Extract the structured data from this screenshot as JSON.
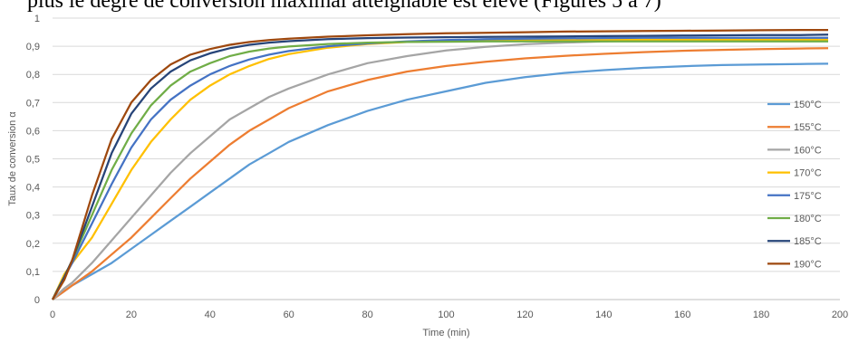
{
  "caption_text": "plus le degré de conversion maximal atteignable est élevé (Figures 5 à 7)",
  "chart_data": {
    "type": "line",
    "xlabel": "Time (min)",
    "ylabel": "Taux de conversion α",
    "xlim": [
      0,
      200
    ],
    "ylim": [
      0,
      1
    ],
    "x_ticks": [
      "0",
      "20",
      "40",
      "60",
      "80",
      "100",
      "120",
      "140",
      "160",
      "180",
      "200"
    ],
    "y_ticks": [
      "0",
      "0,1",
      "0,2",
      "0,3",
      "0,4",
      "0,5",
      "0,6",
      "0,7",
      "0,8",
      "0,9",
      "1"
    ],
    "grid": "horizontal",
    "legend_position": "right",
    "x": [
      0,
      3,
      5,
      10,
      15,
      20,
      25,
      30,
      35,
      40,
      45,
      50,
      55,
      60,
      70,
      80,
      90,
      100,
      110,
      120,
      130,
      140,
      150,
      160,
      170,
      180,
      190,
      197
    ],
    "series": [
      {
        "name": "150°C",
        "color": "#5B9BD5",
        "values": [
          0,
          0.03,
          0.05,
          0.09,
          0.13,
          0.18,
          0.23,
          0.28,
          0.33,
          0.38,
          0.43,
          0.48,
          0.52,
          0.56,
          0.62,
          0.67,
          0.71,
          0.74,
          0.77,
          0.79,
          0.805,
          0.815,
          0.823,
          0.829,
          0.833,
          0.835,
          0.837,
          0.838
        ]
      },
      {
        "name": "155°C",
        "color": "#ED7D31",
        "values": [
          0,
          0.03,
          0.05,
          0.1,
          0.16,
          0.22,
          0.29,
          0.36,
          0.43,
          0.49,
          0.55,
          0.6,
          0.64,
          0.68,
          0.74,
          0.78,
          0.81,
          0.83,
          0.845,
          0.857,
          0.866,
          0.873,
          0.879,
          0.884,
          0.887,
          0.89,
          0.892,
          0.893
        ]
      },
      {
        "name": "160°C",
        "color": "#A5A5A5",
        "values": [
          0,
          0.04,
          0.06,
          0.13,
          0.21,
          0.29,
          0.37,
          0.45,
          0.52,
          0.58,
          0.64,
          0.68,
          0.72,
          0.75,
          0.8,
          0.84,
          0.865,
          0.885,
          0.898,
          0.907,
          0.913,
          0.917,
          0.92,
          0.922,
          0.923,
          0.924,
          0.925,
          0.925
        ]
      },
      {
        "name": "170°C",
        "color": "#FFC000",
        "values": [
          0,
          0.09,
          0.13,
          0.22,
          0.34,
          0.46,
          0.56,
          0.64,
          0.71,
          0.76,
          0.8,
          0.83,
          0.855,
          0.872,
          0.895,
          0.908,
          0.915,
          0.918,
          0.92,
          0.921,
          0.922,
          0.922,
          0.923,
          0.923,
          0.923,
          0.923,
          0.923,
          0.923
        ]
      },
      {
        "name": "175°C",
        "color": "#4472C4",
        "values": [
          0,
          0.08,
          0.13,
          0.27,
          0.41,
          0.54,
          0.64,
          0.71,
          0.76,
          0.8,
          0.83,
          0.853,
          0.87,
          0.883,
          0.9,
          0.91,
          0.917,
          0.922,
          0.925,
          0.927,
          0.928,
          0.929,
          0.93,
          0.93,
          0.93,
          0.93,
          0.93,
          0.93
        ]
      },
      {
        "name": "180°C",
        "color": "#70AD47",
        "values": [
          0,
          0.08,
          0.14,
          0.3,
          0.46,
          0.59,
          0.69,
          0.76,
          0.81,
          0.84,
          0.865,
          0.881,
          0.892,
          0.899,
          0.908,
          0.913,
          0.915,
          0.916,
          0.917,
          0.917,
          0.917,
          0.917,
          0.917,
          0.917,
          0.917,
          0.917,
          0.917,
          0.917
        ]
      },
      {
        "name": "185°C",
        "color": "#264478",
        "values": [
          0,
          0.08,
          0.14,
          0.33,
          0.52,
          0.66,
          0.75,
          0.81,
          0.85,
          0.875,
          0.893,
          0.905,
          0.913,
          0.918,
          0.925,
          0.929,
          0.931,
          0.932,
          0.933,
          0.934,
          0.935,
          0.936,
          0.937,
          0.938,
          0.939,
          0.94,
          0.94,
          0.941
        ]
      },
      {
        "name": "190°C",
        "color": "#9E480E",
        "values": [
          0,
          0.07,
          0.14,
          0.37,
          0.57,
          0.7,
          0.78,
          0.835,
          0.87,
          0.89,
          0.905,
          0.915,
          0.922,
          0.927,
          0.934,
          0.939,
          0.943,
          0.946,
          0.948,
          0.95,
          0.952,
          0.953,
          0.954,
          0.955,
          0.956,
          0.957,
          0.958,
          0.958
        ]
      }
    ]
  }
}
